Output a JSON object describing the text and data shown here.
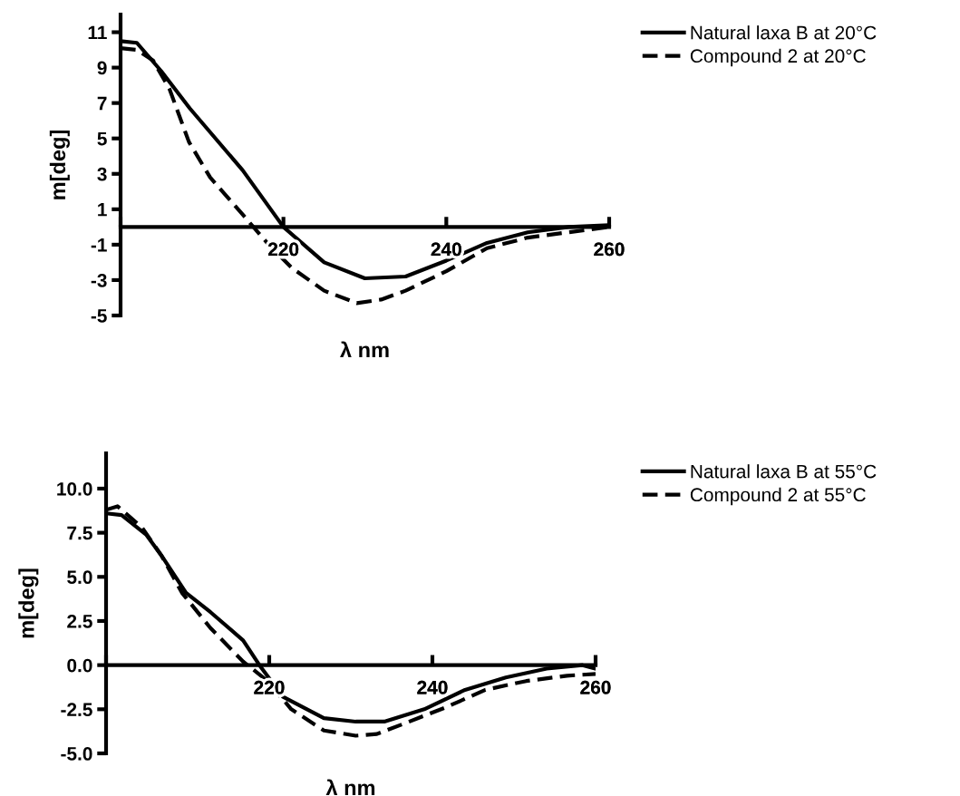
{
  "chart_data": [
    {
      "type": "line",
      "xlabel": "λ nm",
      "ylabel": "m[deg]",
      "xlim": [
        200,
        260
      ],
      "ylim": [
        -5,
        12
      ],
      "xticks": [
        {
          "value": 200,
          "label": null
        },
        220,
        240,
        260
      ],
      "yticks": [
        -5,
        -3,
        -1,
        1,
        3,
        5,
        7,
        9,
        11
      ],
      "grid": false,
      "legend": "top right",
      "marker": "none",
      "series": [
        {
          "name": "Natural laxa B at 20°C",
          "color": "#000000",
          "line_style": "solid",
          "x": [
            200,
            202,
            205,
            208.5,
            215,
            220,
            225,
            230,
            235,
            240,
            245,
            250,
            255,
            260
          ],
          "values": [
            10.5,
            10.4,
            8.8,
            6.7,
            3.2,
            0,
            -2.0,
            -2.9,
            -2.8,
            -1.9,
            -0.9,
            -0.3,
            0,
            0.1
          ]
        },
        {
          "name": "Compound 2 at 20°C",
          "color": "#000000",
          "line_style": "dashed",
          "x": [
            200,
            202,
            204,
            206,
            208.4,
            211,
            215,
            218,
            221,
            225,
            229,
            232,
            235,
            240,
            245,
            250,
            255,
            260
          ],
          "values": [
            10.1,
            10.0,
            9.4,
            7.8,
            4.8,
            2.8,
            0.7,
            -0.9,
            -2.3,
            -3.6,
            -4.3,
            -4.1,
            -3.6,
            -2.5,
            -1.2,
            -0.6,
            -0.3,
            0
          ]
        }
      ]
    },
    {
      "type": "line",
      "xlabel": "λ nm",
      "ylabel": "m[deg]",
      "xlim": [
        200,
        260
      ],
      "ylim": [
        -5,
        12
      ],
      "xticks": [
        {
          "value": 200,
          "label": null
        },
        220,
        240,
        260
      ],
      "yticks": [
        {
          "value": -5,
          "label": "-5.0"
        },
        {
          "value": -2.5,
          "label": "-2.5"
        },
        {
          "value": 0,
          "label": "0.0"
        },
        {
          "value": 2.5,
          "label": "2.5"
        },
        {
          "value": 5,
          "label": "5.0"
        },
        {
          "value": 7.5,
          "label": "7.5"
        },
        {
          "value": 10,
          "label": "10.0"
        }
      ],
      "grid": false,
      "legend": "top right",
      "marker": "none",
      "series": [
        {
          "name": "Natural laxa B at 55°C",
          "color": "#000000",
          "line_style": "solid",
          "x": [
            200,
            201.9,
            204.9,
            206.8,
            209.8,
            212.8,
            216.8,
            218.8,
            221.7,
            226.7,
            230.6,
            234.1,
            239,
            244,
            249,
            254,
            258.4,
            260
          ],
          "values": [
            8.6,
            8.5,
            7.4,
            6.2,
            4.1,
            3.0,
            1.4,
            0,
            -1.8,
            -3.0,
            -3.2,
            -3.2,
            -2.5,
            -1.4,
            -0.7,
            -0.2,
            0,
            -0.2
          ]
        },
        {
          "name": "Compound 2 at 55°C",
          "color": "#000000",
          "line_style": "dashed",
          "x": [
            200,
            201.4,
            204.4,
            206.8,
            209.3,
            212.8,
            216.8,
            219.8,
            222.7,
            226.7,
            230.6,
            233.2,
            236.6,
            241.6,
            246.5,
            251.5,
            256.5,
            260
          ],
          "values": [
            8.8,
            9.0,
            7.8,
            6.2,
            4.1,
            2.1,
            0.2,
            -0.9,
            -2.5,
            -3.7,
            -4.0,
            -3.9,
            -3.3,
            -2.4,
            -1.4,
            -0.9,
            -0.6,
            -0.5
          ]
        }
      ]
    }
  ]
}
